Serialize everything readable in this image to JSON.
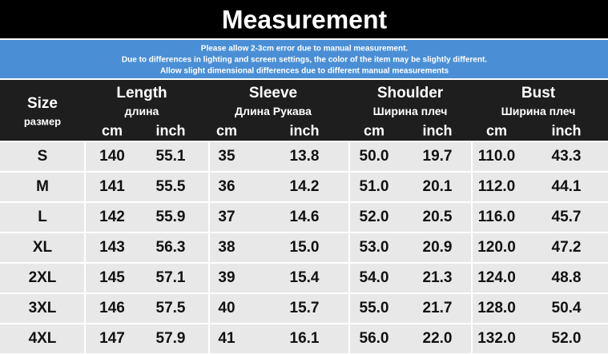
{
  "header": {
    "title": "Measurement"
  },
  "notes": [
    "Please allow 2-3cm error due to manual measurement.",
    "Due to differences in lighting and screen settings, the color of the item may be slightly different.",
    "Allow slight dimensional differences due to different manual measurements"
  ],
  "table": {
    "size_header": {
      "label": "Size",
      "sublabel": "размер"
    },
    "groups": [
      {
        "label": "Length",
        "sublabel": "длина",
        "units": [
          "cm",
          "inch"
        ]
      },
      {
        "label": "Sleeve",
        "sublabel": "Длина Рукава",
        "units": [
          "cm",
          "inch"
        ]
      },
      {
        "label": "Shoulder",
        "sublabel": "Ширина плеч",
        "units": [
          "cm",
          "inch"
        ]
      },
      {
        "label": "Bust",
        "sublabel": "Ширина плеч",
        "units": [
          "cm",
          "inch"
        ]
      }
    ],
    "rows": [
      [
        "S",
        "140",
        "55.1",
        "35",
        "13.8",
        "50.0",
        "19.7",
        "110.0",
        "43.3"
      ],
      [
        "M",
        "141",
        "55.5",
        "36",
        "14.2",
        "51.0",
        "20.1",
        "112.0",
        "44.1"
      ],
      [
        "L",
        "142",
        "55.9",
        "37",
        "14.6",
        "52.0",
        "20.5",
        "116.0",
        "45.7"
      ],
      [
        "XL",
        "143",
        "56.3",
        "38",
        "15.0",
        "53.0",
        "20.9",
        "120.0",
        "47.2"
      ],
      [
        "2XL",
        "145",
        "57.1",
        "39",
        "15.4",
        "54.0",
        "21.3",
        "124.0",
        "48.8"
      ],
      [
        "3XL",
        "146",
        "57.5",
        "40",
        "15.7",
        "55.0",
        "21.7",
        "128.0",
        "50.4"
      ],
      [
        "4XL",
        "147",
        "57.9",
        "41",
        "16.1",
        "56.0",
        "22.0",
        "132.0",
        "52.0"
      ]
    ]
  }
}
